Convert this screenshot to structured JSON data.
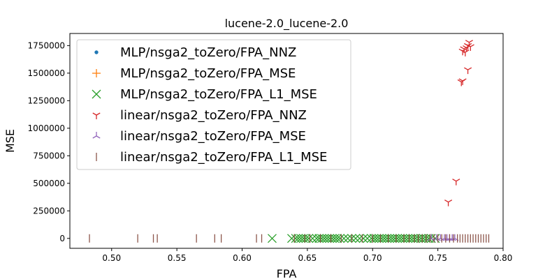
{
  "chart_data": {
    "type": "scatter",
    "title": "lucene-2.0_lucene-2.0",
    "xlabel": "FPA",
    "ylabel": "MSE",
    "xlim": [
      0.468,
      0.8
    ],
    "ylim": [
      -90000,
      1860000
    ],
    "xticks": [
      0.5,
      0.55,
      0.6,
      0.65,
      0.7,
      0.75,
      0.8
    ],
    "xtick_labels": [
      "0.50",
      "0.55",
      "0.60",
      "0.65",
      "0.70",
      "0.75",
      "0.80"
    ],
    "yticks": [
      0,
      250000,
      500000,
      750000,
      1000000,
      1250000,
      1500000,
      1750000
    ],
    "ytick_labels": [
      "0",
      "250000",
      "500000",
      "750000",
      "1000000",
      "1250000",
      "1500000",
      "1750000"
    ],
    "legend_position": "upper-left",
    "grid": false,
    "series": [
      {
        "name": "MLP/nsga2_toZero/FPA_NNZ",
        "marker": "point",
        "color": "#1f77b4",
        "points": []
      },
      {
        "name": "MLP/nsga2_toZero/FPA_MSE",
        "marker": "plus",
        "color": "#ff7f0e",
        "points": []
      },
      {
        "name": "MLP/nsga2_toZero/FPA_L1_MSE",
        "marker": "x",
        "color": "#2ca02c",
        "points": [
          [
            0.623,
            0
          ],
          [
            0.638,
            0
          ],
          [
            0.641,
            0
          ],
          [
            0.643,
            0
          ],
          [
            0.645,
            0
          ],
          [
            0.647,
            0
          ],
          [
            0.649,
            0
          ],
          [
            0.651,
            0
          ],
          [
            0.654,
            0
          ],
          [
            0.657,
            0
          ],
          [
            0.659,
            0
          ],
          [
            0.661,
            0
          ],
          [
            0.663,
            0
          ],
          [
            0.665,
            0
          ],
          [
            0.667,
            0
          ],
          [
            0.669,
            0
          ],
          [
            0.671,
            0
          ],
          [
            0.673,
            0
          ],
          [
            0.675,
            0
          ],
          [
            0.678,
            0
          ],
          [
            0.681,
            0
          ],
          [
            0.684,
            0
          ],
          [
            0.687,
            0
          ],
          [
            0.69,
            0
          ],
          [
            0.693,
            0
          ],
          [
            0.696,
            0
          ],
          [
            0.699,
            0
          ],
          [
            0.701,
            0
          ],
          [
            0.703,
            0
          ],
          [
            0.705,
            0
          ],
          [
            0.707,
            0
          ],
          [
            0.709,
            0
          ],
          [
            0.711,
            0
          ],
          [
            0.713,
            0
          ],
          [
            0.715,
            0
          ],
          [
            0.717,
            0
          ],
          [
            0.719,
            0
          ],
          [
            0.721,
            0
          ],
          [
            0.723,
            0
          ],
          [
            0.725,
            0
          ],
          [
            0.727,
            0
          ],
          [
            0.729,
            0
          ],
          [
            0.731,
            0
          ],
          [
            0.733,
            0
          ],
          [
            0.735,
            0
          ],
          [
            0.737,
            0
          ],
          [
            0.739,
            0
          ],
          [
            0.741,
            0
          ],
          [
            0.743,
            0
          ],
          [
            0.745,
            0
          ],
          [
            0.748,
            0
          ]
        ]
      },
      {
        "name": "linear/nsga2_toZero/FPA_NNZ",
        "marker": "tri_down",
        "color": "#d62728",
        "points": [
          [
            0.758,
            330000
          ],
          [
            0.764,
            520000
          ],
          [
            0.768,
            1420000
          ],
          [
            0.769,
            1430000
          ],
          [
            0.773,
            1530000
          ],
          [
            0.769,
            1700000
          ],
          [
            0.77,
            1720000
          ],
          [
            0.771,
            1690000
          ],
          [
            0.772,
            1730000
          ],
          [
            0.773,
            1750000
          ],
          [
            0.774,
            1780000
          ],
          [
            0.775,
            1740000
          ]
        ]
      },
      {
        "name": "linear/nsga2_toZero/FPA_MSE",
        "marker": "tri_up",
        "color": "#9467bd",
        "points": [
          [
            0.745,
            0
          ],
          [
            0.749,
            0
          ],
          [
            0.752,
            0
          ],
          [
            0.755,
            0
          ],
          [
            0.757,
            0
          ],
          [
            0.759,
            0
          ],
          [
            0.761,
            0
          ],
          [
            0.763,
            0
          ]
        ]
      },
      {
        "name": "linear/nsga2_toZero/FPA_L1_MSE",
        "marker": "vline",
        "color": "#8c564b",
        "points": [
          [
            0.483,
            0
          ],
          [
            0.52,
            0
          ],
          [
            0.532,
            0
          ],
          [
            0.535,
            0
          ],
          [
            0.565,
            0
          ],
          [
            0.579,
            0
          ],
          [
            0.584,
            0
          ],
          [
            0.611,
            0
          ],
          [
            0.615,
            0
          ],
          [
            0.64,
            0
          ],
          [
            0.648,
            0
          ],
          [
            0.652,
            0
          ],
          [
            0.66,
            0
          ],
          [
            0.668,
            0
          ],
          [
            0.676,
            0
          ],
          [
            0.684,
            0
          ],
          [
            0.692,
            0
          ],
          [
            0.7,
            0
          ],
          [
            0.706,
            0
          ],
          [
            0.712,
            0
          ],
          [
            0.718,
            0
          ],
          [
            0.724,
            0
          ],
          [
            0.728,
            0
          ],
          [
            0.732,
            0
          ],
          [
            0.735,
            0
          ],
          [
            0.738,
            0
          ],
          [
            0.741,
            0
          ],
          [
            0.744,
            0
          ],
          [
            0.747,
            0
          ],
          [
            0.75,
            0
          ],
          [
            0.753,
            0
          ],
          [
            0.756,
            0
          ],
          [
            0.759,
            0
          ],
          [
            0.762,
            0
          ],
          [
            0.765,
            0
          ],
          [
            0.767,
            0
          ],
          [
            0.769,
            0
          ],
          [
            0.771,
            0
          ],
          [
            0.773,
            0
          ],
          [
            0.775,
            0
          ],
          [
            0.777,
            0
          ],
          [
            0.779,
            0
          ],
          [
            0.781,
            0
          ],
          [
            0.783,
            0
          ],
          [
            0.785,
            0
          ],
          [
            0.787,
            0
          ],
          [
            0.789,
            0
          ]
        ]
      }
    ]
  }
}
